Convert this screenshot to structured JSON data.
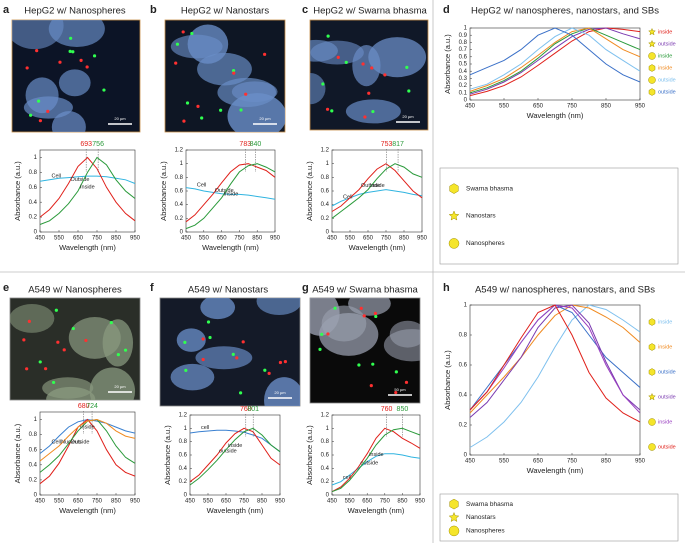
{
  "chart_data": [
    {
      "type": "line",
      "panel": "a",
      "title": "HepG2 w/ Nanospheres",
      "scale_bar": "20 µm",
      "x_label": "Wavelength (nm)",
      "y_label": "Absorbance (a.u.)",
      "x": [
        450,
        500,
        550,
        600,
        650,
        700,
        750,
        800,
        850,
        900,
        950
      ],
      "series": [
        {
          "name": "Cell",
          "color": "#30b4e0",
          "values": [
            0.68,
            0.7,
            0.72,
            0.73,
            0.74,
            0.75,
            0.75,
            0.74,
            0.72,
            0.7,
            0.65
          ]
        },
        {
          "name": "Outside",
          "color": "#e0201a",
          "values": [
            0.2,
            0.3,
            0.45,
            0.65,
            0.88,
            1.0,
            0.85,
            0.6,
            0.4,
            0.25,
            0.15
          ]
        },
        {
          "name": "Inside",
          "color": "#2a9a3a",
          "values": [
            0.1,
            0.15,
            0.25,
            0.38,
            0.55,
            0.8,
            1.0,
            0.9,
            0.7,
            0.55,
            0.45
          ]
        }
      ],
      "peaks": [
        {
          "value": 693,
          "color": "#e0201a"
        },
        {
          "value": 756,
          "color": "#2a9a3a"
        }
      ],
      "xlim": [
        450,
        950
      ],
      "xticks": [
        450,
        550,
        650,
        750,
        850,
        950
      ],
      "ylim": [
        0,
        1.1
      ],
      "yticks": [
        0,
        0.2,
        0.4,
        0.6,
        0.8,
        1
      ]
    },
    {
      "type": "line",
      "panel": "b",
      "title": "HepG2 w/ Nanostars",
      "scale_bar": "20 µm",
      "x_label": "Wavelength (nm)",
      "y_label": "Absorbance (a.u.)",
      "x": [
        450,
        500,
        550,
        600,
        650,
        700,
        750,
        800,
        850,
        900,
        950
      ],
      "series": [
        {
          "name": "Cell",
          "color": "#30b4e0",
          "values": [
            0.65,
            0.63,
            0.6,
            0.58,
            0.56,
            0.55,
            0.55,
            0.54,
            0.52,
            0.5,
            0.48
          ]
        },
        {
          "name": "Outside",
          "color": "#e0201a",
          "values": [
            0.15,
            0.25,
            0.4,
            0.55,
            0.72,
            0.88,
            0.98,
            1.0,
            0.95,
            0.9,
            0.8
          ]
        },
        {
          "name": "Inside",
          "color": "#2a9a3a",
          "values": [
            0.05,
            0.1,
            0.2,
            0.35,
            0.5,
            0.7,
            0.88,
            0.97,
            1.0,
            0.95,
            0.88
          ]
        }
      ],
      "peaks": [
        {
          "value": 783,
          "color": "#e0201a"
        },
        {
          "value": 840,
          "color": "#2a9a3a"
        }
      ],
      "xlim": [
        450,
        950
      ],
      "xticks": [
        450,
        550,
        650,
        750,
        850,
        950
      ],
      "ylim": [
        0,
        1.2
      ],
      "yticks": [
        0,
        0.2,
        0.4,
        0.6,
        0.8,
        1,
        1.2
      ]
    },
    {
      "type": "line",
      "panel": "c",
      "title": "HepG2 w/ Swarna bhasma",
      "scale_bar": "20 µm",
      "x_label": "Wavelength (nm)",
      "y_label": "Absorbance (a.u.)",
      "x": [
        450,
        500,
        550,
        600,
        650,
        700,
        750,
        800,
        850,
        900,
        950
      ],
      "series": [
        {
          "name": "Cell",
          "color": "#30b4e0",
          "values": [
            0.38,
            0.45,
            0.5,
            0.55,
            0.58,
            0.6,
            0.62,
            0.6,
            0.58,
            0.55,
            0.53
          ]
        },
        {
          "name": "Outside",
          "color": "#e0201a",
          "values": [
            0.3,
            0.38,
            0.5,
            0.62,
            0.78,
            0.92,
            1.0,
            0.9,
            0.75,
            0.6,
            0.5
          ]
        },
        {
          "name": "Inside",
          "color": "#2a9a3a",
          "values": [
            0.2,
            0.3,
            0.4,
            0.5,
            0.62,
            0.78,
            0.92,
            1.0,
            0.95,
            0.85,
            0.8
          ]
        }
      ],
      "peaks": [
        {
          "value": 753,
          "color": "#e0201a"
        },
        {
          "value": 817,
          "color": "#2a9a3a"
        }
      ],
      "xlim": [
        450,
        950
      ],
      "xticks": [
        450,
        550,
        650,
        750,
        850,
        950
      ],
      "ylim": [
        0,
        1.2
      ],
      "yticks": [
        0,
        0.2,
        0.4,
        0.6,
        0.8,
        1,
        1.2
      ]
    },
    {
      "type": "line",
      "panel": "d",
      "title": "HepG2 w/ nanospheres, nanostars, and SBs",
      "x_label": "Wavelength (nm)",
      "y_label": "Absorbance (a.u.)",
      "x": [
        450,
        500,
        550,
        600,
        650,
        700,
        750,
        800,
        850,
        900,
        950
      ],
      "series": [
        {
          "name": "inside",
          "marker": "star",
          "color": "#e0201a",
          "values": [
            0.06,
            0.12,
            0.2,
            0.32,
            0.48,
            0.65,
            0.82,
            0.95,
            1.0,
            0.98,
            0.95
          ]
        },
        {
          "name": "outside",
          "marker": "star",
          "color": "#7a3ab0",
          "values": [
            0.08,
            0.15,
            0.25,
            0.38,
            0.55,
            0.72,
            0.88,
            0.98,
            1.0,
            0.92,
            0.85
          ]
        },
        {
          "name": "inside",
          "marker": "circle",
          "color": "#2a9a3a",
          "values": [
            0.1,
            0.17,
            0.27,
            0.4,
            0.58,
            0.78,
            0.92,
            1.0,
            0.9,
            0.8,
            0.7
          ]
        },
        {
          "name": "inside",
          "marker": "hexagon",
          "color": "#f08a20",
          "values": [
            0.12,
            0.2,
            0.3,
            0.45,
            0.62,
            0.8,
            0.95,
            1.0,
            0.85,
            0.7,
            0.6
          ]
        },
        {
          "name": "outside",
          "marker": "circle",
          "color": "#7ec0ee",
          "values": [
            0.15,
            0.22,
            0.35,
            0.5,
            0.7,
            0.88,
            1.0,
            0.9,
            0.7,
            0.55,
            0.4
          ]
        },
        {
          "name": "outside",
          "marker": "hexagon",
          "color": "#3a70c8",
          "values": [
            0.35,
            0.45,
            0.55,
            0.7,
            0.9,
            1.0,
            0.9,
            0.7,
            0.5,
            0.35,
            0.25
          ]
        }
      ],
      "marker_key": [
        {
          "shape": "hexagon",
          "label": "Swarna bhasma"
        },
        {
          "shape": "star",
          "label": "Nanostars"
        },
        {
          "shape": "circle",
          "label": "Nanospheres"
        }
      ],
      "xlim": [
        450,
        950
      ],
      "xticks": [
        450,
        550,
        650,
        750,
        850,
        950
      ],
      "ylim": [
        0,
        1
      ],
      "yticks": [
        0,
        0.1,
        0.2,
        0.3,
        0.4,
        0.5,
        0.6,
        0.7,
        0.8,
        0.9,
        1
      ]
    },
    {
      "type": "line",
      "panel": "e",
      "title": "A549 w/ Nanospheres",
      "scale_bar": "20 µm",
      "x_label": "Wavelength (nm)",
      "y_label": "Absorbance (a.u.)",
      "x": [
        450,
        500,
        550,
        600,
        650,
        700,
        750,
        800,
        850,
        900,
        950
      ],
      "series": [
        {
          "name": "Cell",
          "color": "#3a80d0",
          "values": [
            0.55,
            0.65,
            0.78,
            0.9,
            0.97,
            1.0,
            0.98,
            0.95,
            0.9,
            0.85,
            0.82
          ]
        },
        {
          "name": "Outside",
          "color": "#e0201a",
          "values": [
            0.15,
            0.25,
            0.42,
            0.65,
            0.9,
            1.0,
            0.85,
            0.6,
            0.4,
            0.3,
            0.25
          ]
        },
        {
          "name": "Inside",
          "color": "#2a9a3a",
          "values": [
            0.3,
            0.4,
            0.52,
            0.68,
            0.85,
            0.98,
            1.0,
            0.85,
            0.65,
            0.5,
            0.42
          ]
        },
        {
          "name": "Nucleus",
          "color": "#f08a20",
          "values": [
            0.45,
            0.55,
            0.65,
            0.78,
            0.9,
            0.98,
            1.0,
            0.95,
            0.85,
            0.78,
            0.75
          ]
        }
      ],
      "peaks": [
        {
          "value": 680,
          "color": "#e0201a"
        },
        {
          "value": 724,
          "color": "#2a9a3a"
        }
      ],
      "xlim": [
        450,
        950
      ],
      "xticks": [
        450,
        550,
        650,
        750,
        850,
        950
      ],
      "ylim": [
        0,
        1.1
      ],
      "yticks": [
        0,
        0.2,
        0.4,
        0.6,
        0.8,
        1
      ]
    },
    {
      "type": "line",
      "panel": "f",
      "title": "A549 w/ Nanostars",
      "scale_bar": "20 µm",
      "x_label": "Wavelength (nm)",
      "y_label": "Absorbance (a.u.)",
      "x": [
        450,
        500,
        550,
        600,
        650,
        700,
        750,
        800,
        850,
        900,
        950
      ],
      "series": [
        {
          "name": "cell",
          "color": "#3a80d0",
          "values": [
            0.93,
            0.95,
            0.96,
            0.97,
            0.97,
            0.96,
            0.94,
            0.9,
            0.85,
            0.75,
            0.65
          ]
        },
        {
          "name": "outside",
          "color": "#e0201a",
          "values": [
            0.2,
            0.3,
            0.45,
            0.6,
            0.78,
            0.92,
            1.0,
            0.95,
            0.75,
            0.55,
            0.45
          ]
        },
        {
          "name": "inside",
          "color": "#2a9a3a",
          "values": [
            0.15,
            0.25,
            0.38,
            0.52,
            0.68,
            0.83,
            0.95,
            1.0,
            0.9,
            0.75,
            0.65
          ]
        }
      ],
      "peaks": [
        {
          "value": 760,
          "color": "#e0201a"
        },
        {
          "value": 801,
          "color": "#2a9a3a"
        }
      ],
      "xlim": [
        450,
        950
      ],
      "xticks": [
        450,
        550,
        650,
        750,
        850,
        950
      ],
      "ylim": [
        0,
        1.2
      ],
      "yticks": [
        0,
        0.2,
        0.4,
        0.6,
        0.8,
        1,
        1.2
      ]
    },
    {
      "type": "line",
      "panel": "g",
      "title": "A549 w/ Swarna bhasma",
      "scale_bar": "50 µm",
      "x_label": "Wavelength (nm)",
      "y_label": "Absorbance (a.u.)",
      "x": [
        450,
        500,
        550,
        600,
        650,
        700,
        750,
        800,
        850,
        900,
        950
      ],
      "series": [
        {
          "name": "cell",
          "color": "#30b4e0",
          "values": [
            0.15,
            0.2,
            0.3,
            0.4,
            0.5,
            0.58,
            0.62,
            0.62,
            0.6,
            0.57,
            0.55
          ]
        },
        {
          "name": "outside",
          "color": "#e0201a",
          "values": [
            0.05,
            0.12,
            0.25,
            0.42,
            0.62,
            0.85,
            1.0,
            0.95,
            0.85,
            0.78,
            0.7
          ]
        },
        {
          "name": "inside",
          "color": "#2a9a3a",
          "values": [
            0.05,
            0.1,
            0.22,
            0.38,
            0.55,
            0.75,
            0.9,
            0.98,
            1.0,
            0.95,
            0.9
          ]
        }
      ],
      "peaks": [
        {
          "value": 760,
          "color": "#e0201a"
        },
        {
          "value": 850,
          "color": "#2a9a3a"
        }
      ],
      "xlim": [
        450,
        950
      ],
      "xticks": [
        450,
        550,
        650,
        750,
        850,
        950
      ],
      "ylim": [
        0,
        1.2
      ],
      "yticks": [
        0,
        0.2,
        0.4,
        0.6,
        0.8,
        1,
        1.2
      ]
    },
    {
      "type": "line",
      "panel": "h",
      "title": "A549 w/ nanospheres, nanostars, and SBs",
      "x_label": "Wavelength (nm)",
      "y_label": "Absorbance (a.u.)",
      "x": [
        450,
        500,
        550,
        600,
        650,
        700,
        750,
        800,
        850,
        900,
        950
      ],
      "series": [
        {
          "name": "inside",
          "marker": "hexagon",
          "color": "#7ec0ee",
          "values": [
            0.05,
            0.12,
            0.22,
            0.35,
            0.52,
            0.72,
            0.9,
            1.0,
            0.97,
            0.9,
            0.82
          ]
        },
        {
          "name": "inside",
          "marker": "hexagon",
          "color": "#f08a20",
          "values": [
            0.28,
            0.4,
            0.52,
            0.65,
            0.8,
            0.93,
            1.0,
            0.98,
            0.92,
            0.85,
            0.75
          ]
        },
        {
          "name": "outside",
          "marker": "hexagon",
          "color": "#3a70c8",
          "values": [
            0.3,
            0.45,
            0.6,
            0.75,
            0.9,
            1.0,
            0.95,
            0.8,
            0.65,
            0.55,
            0.45
          ]
        },
        {
          "name": "outside",
          "marker": "star",
          "color": "#7a3ab0",
          "values": [
            0.25,
            0.35,
            0.5,
            0.65,
            0.85,
            0.98,
            1.0,
            0.88,
            0.62,
            0.4,
            0.3
          ]
        },
        {
          "name": "inside",
          "marker": "circle",
          "color": "#9a40c0",
          "values": [
            0.3,
            0.42,
            0.58,
            0.75,
            0.9,
            1.0,
            0.98,
            0.85,
            0.6,
            0.4,
            0.28
          ]
        },
        {
          "name": "outside",
          "marker": "circle",
          "color": "#e0201a",
          "values": [
            0.3,
            0.42,
            0.6,
            0.78,
            0.95,
            1.0,
            0.8,
            0.55,
            0.38,
            0.28,
            0.22
          ]
        }
      ],
      "marker_key": [
        {
          "shape": "hexagon",
          "label": "Swarna bhasma"
        },
        {
          "shape": "star",
          "label": "Nanostars"
        },
        {
          "shape": "circle",
          "label": "Nanospheres"
        }
      ],
      "xlim": [
        450,
        950
      ],
      "xticks": [
        450,
        550,
        650,
        750,
        850,
        950
      ],
      "ylim": [
        0,
        1
      ],
      "yticks": [
        0,
        0.2,
        0.4,
        0.6,
        0.8,
        1
      ]
    }
  ]
}
